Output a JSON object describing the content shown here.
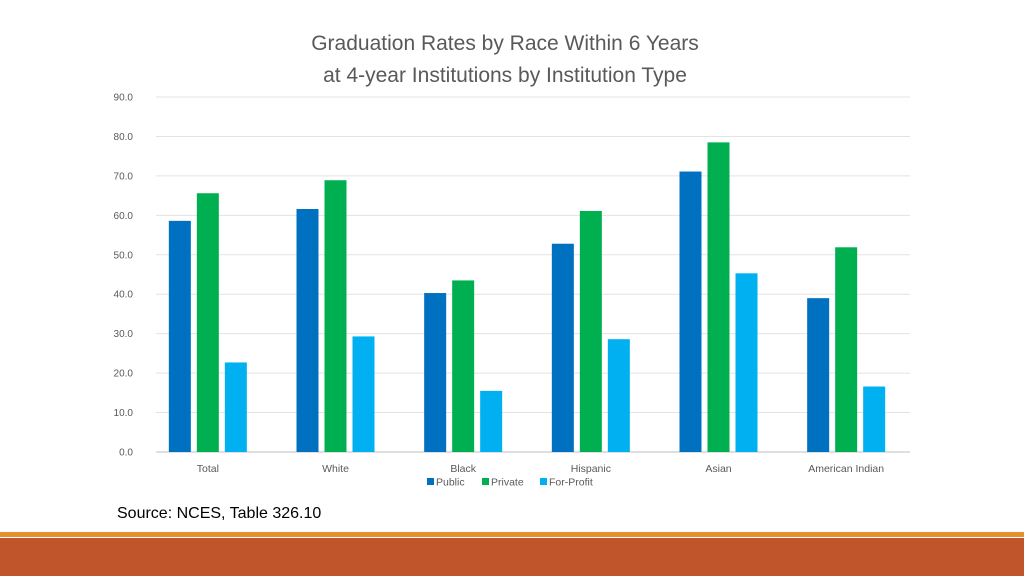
{
  "slide": {
    "source": "Source: NCES, Table 326.10",
    "colors": {
      "accent_line": "#e8902e",
      "footer": "#c0542a"
    }
  },
  "chart_data": {
    "type": "bar",
    "title": [
      "Graduation Rates by Race Within 6 Years",
      "at 4-year Institutions by Institution Type"
    ],
    "categories": [
      "Total",
      "White",
      "Black",
      "Hispanic",
      "Asian",
      "American Indian"
    ],
    "series": [
      {
        "name": "Public",
        "color": "#0070c0",
        "values": [
          58.6,
          61.6,
          40.3,
          52.8,
          71.1,
          39.0
        ]
      },
      {
        "name": "Private",
        "color": "#00b050",
        "values": [
          65.6,
          68.9,
          43.5,
          61.1,
          78.5,
          51.9
        ]
      },
      {
        "name": "For-Profit",
        "color": "#00b0f0",
        "values": [
          22.7,
          29.3,
          15.5,
          28.6,
          45.3,
          16.6
        ]
      }
    ],
    "ylim": [
      0,
      90
    ],
    "yticks": [
      "0.0",
      "10.0",
      "20.0",
      "30.0",
      "40.0",
      "50.0",
      "60.0",
      "70.0",
      "80.0",
      "90.0"
    ],
    "grid": true,
    "legend_position": "bottom"
  }
}
